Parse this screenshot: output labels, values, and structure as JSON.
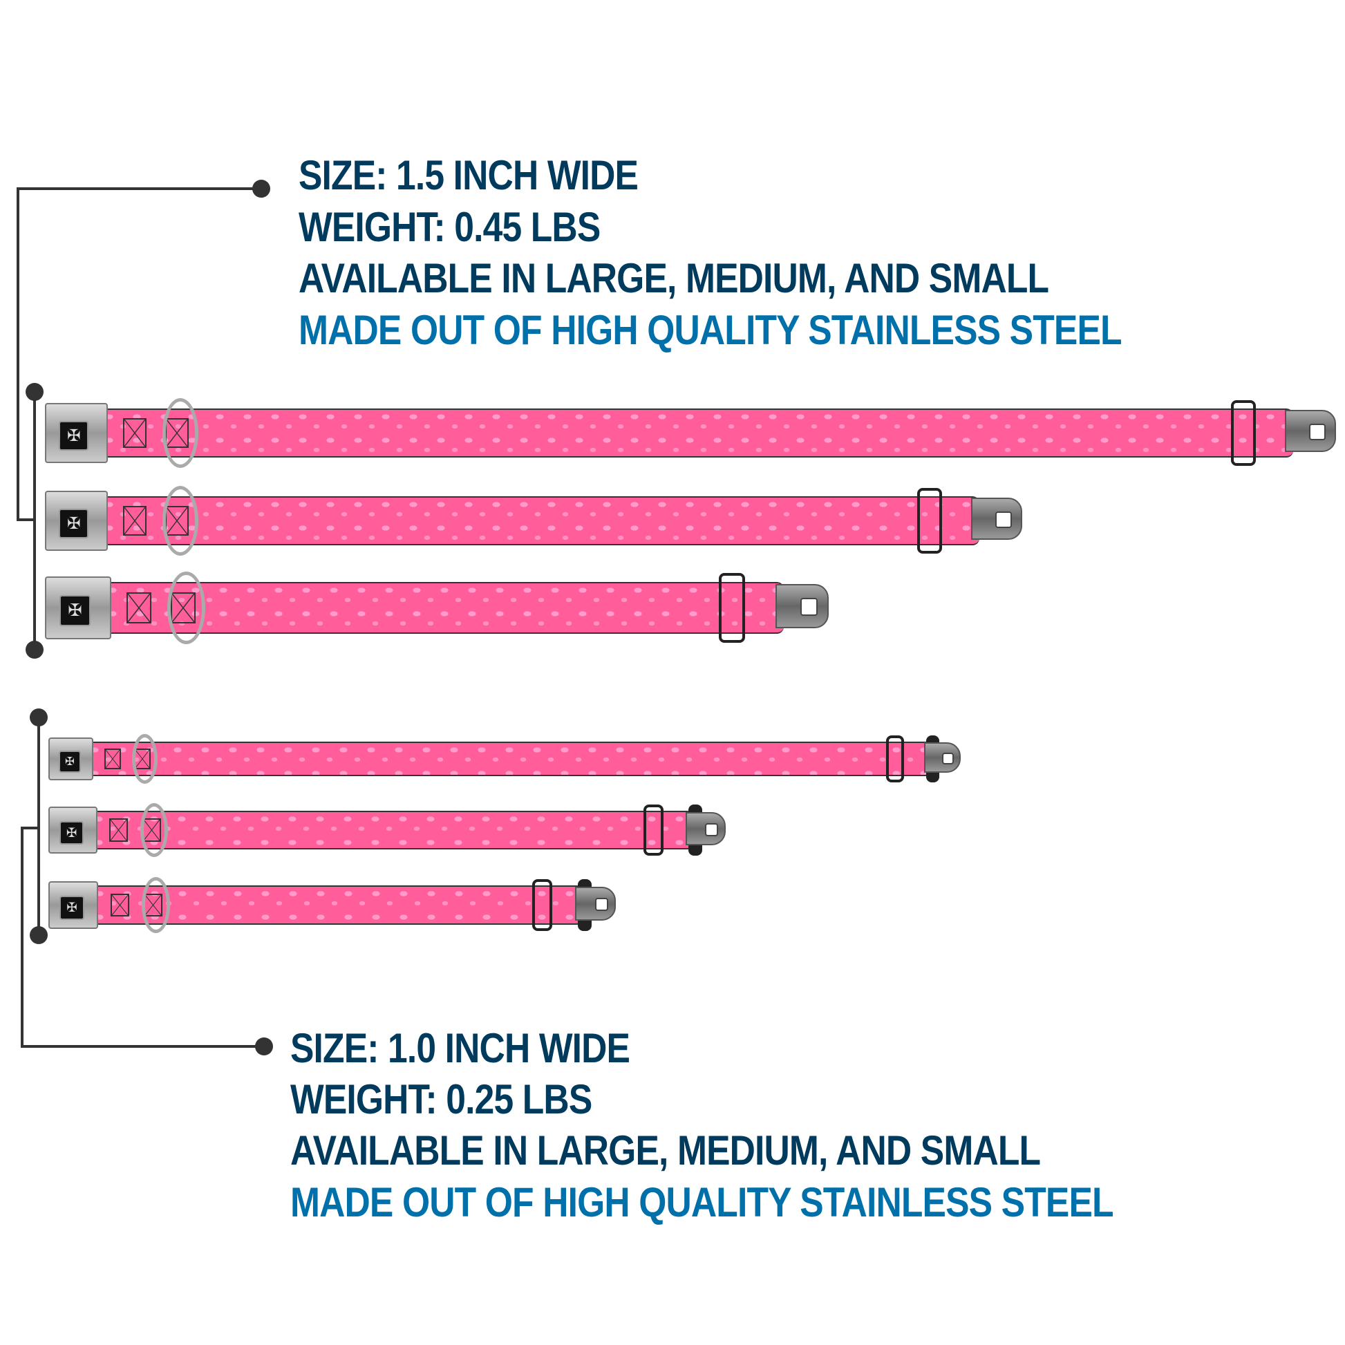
{
  "spec_wide": {
    "size": "SIZE: 1.5 INCH WIDE",
    "weight": "WEIGHT: 0.45 LBS",
    "availability": "AVAILABLE IN LARGE, MEDIUM, AND SMALL",
    "material": "MADE OUT OF HIGH QUALITY STAINLESS STEEL"
  },
  "spec_narrow": {
    "size": "SIZE: 1.0 INCH WIDE",
    "weight": "WEIGHT: 0.25 LBS",
    "availability": "AVAILABLE IN LARGE, MEDIUM, AND SMALL",
    "material": "MADE OUT OF HIGH QUALITY STAINLESS STEEL"
  },
  "colors": {
    "heading": "#003a5d",
    "accent": "#0070aa",
    "collar_pink": "#ff5e9a",
    "pattern": "#ff9ccb"
  },
  "collars": [
    {
      "width": "1.5 inch",
      "size": "large",
      "pattern": "pink butterflies",
      "buckle_icon": "bone-icon"
    },
    {
      "width": "1.5 inch",
      "size": "medium",
      "pattern": "pink butterflies",
      "buckle_icon": "bone-icon"
    },
    {
      "width": "1.5 inch",
      "size": "small",
      "pattern": "pink butterflies",
      "buckle_icon": "bone-icon"
    },
    {
      "width": "1.0 inch",
      "size": "large",
      "pattern": "pink butterflies",
      "buckle_icon": "bone-icon"
    },
    {
      "width": "1.0 inch",
      "size": "medium",
      "pattern": "pink butterflies",
      "buckle_icon": "bone-icon"
    },
    {
      "width": "1.0 inch",
      "size": "small",
      "pattern": "pink butterflies",
      "buckle_icon": "bone-icon"
    }
  ]
}
